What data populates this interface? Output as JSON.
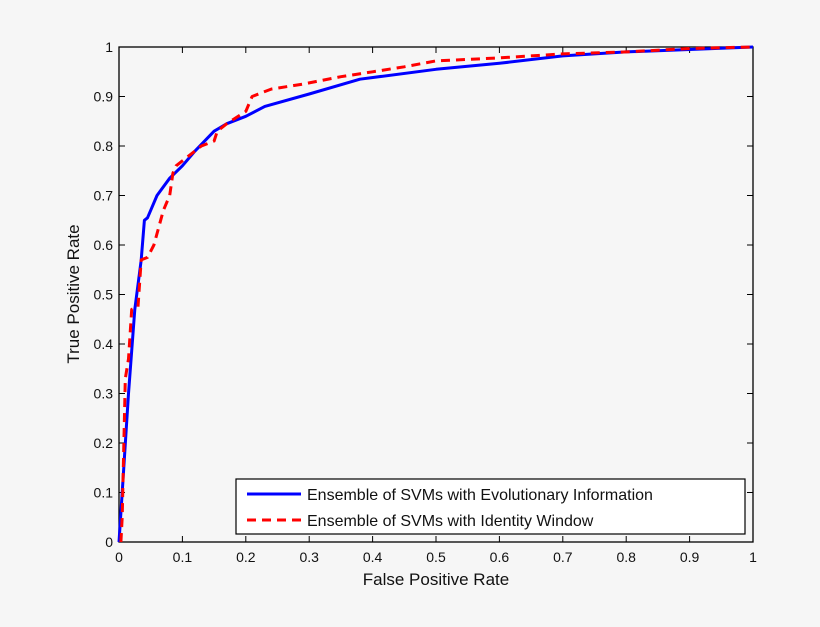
{
  "chart_data": {
    "type": "line",
    "title": "",
    "xlabel": "False Positive Rate",
    "ylabel": "True Positive Rate",
    "xlim": [
      0,
      1
    ],
    "ylim": [
      0,
      1
    ],
    "xticks": [
      "0",
      "0.1",
      "0.2",
      "0.3",
      "0.4",
      "0.5",
      "0.6",
      "0.7",
      "0.8",
      "0.9",
      "1"
    ],
    "yticks": [
      "0",
      "0.1",
      "0.2",
      "0.3",
      "0.4",
      "0.5",
      "0.6",
      "0.7",
      "0.8",
      "0.9",
      "1"
    ],
    "grid": false,
    "legend_position": "bottom-right",
    "series": [
      {
        "name": "Ensemble of SVMs with Evolutionary Information",
        "color": "#0000ff",
        "style": "solid",
        "x": [
          0,
          0.005,
          0.015,
          0.025,
          0.035,
          0.04,
          0.045,
          0.05,
          0.06,
          0.08,
          0.1,
          0.12,
          0.15,
          0.17,
          0.2,
          0.23,
          0.3,
          0.38,
          0.5,
          0.6,
          0.7,
          0.8,
          0.9,
          1
        ],
        "y": [
          0,
          0.1,
          0.3,
          0.47,
          0.57,
          0.65,
          0.655,
          0.67,
          0.7,
          0.735,
          0.76,
          0.79,
          0.83,
          0.845,
          0.86,
          0.88,
          0.905,
          0.935,
          0.955,
          0.967,
          0.982,
          0.99,
          0.995,
          1
        ]
      },
      {
        "name": "Ensemble of SVMs with Identity Window",
        "color": "#ff0000",
        "style": "dashed",
        "x": [
          0.003,
          0.005,
          0.01,
          0.015,
          0.02,
          0.03,
          0.035,
          0.045,
          0.055,
          0.07,
          0.08,
          0.085,
          0.09,
          0.11,
          0.13,
          0.15,
          0.155,
          0.17,
          0.2,
          0.21,
          0.24,
          0.29,
          0.35,
          0.4,
          0.45,
          0.5,
          0.6,
          0.7,
          0.8,
          0.9,
          1
        ],
        "y": [
          0,
          0.05,
          0.33,
          0.37,
          0.47,
          0.475,
          0.57,
          0.575,
          0.6,
          0.67,
          0.7,
          0.745,
          0.76,
          0.78,
          0.8,
          0.81,
          0.83,
          0.845,
          0.87,
          0.9,
          0.915,
          0.925,
          0.94,
          0.95,
          0.96,
          0.972,
          0.978,
          0.986,
          0.99,
          0.997,
          1
        ]
      }
    ]
  }
}
